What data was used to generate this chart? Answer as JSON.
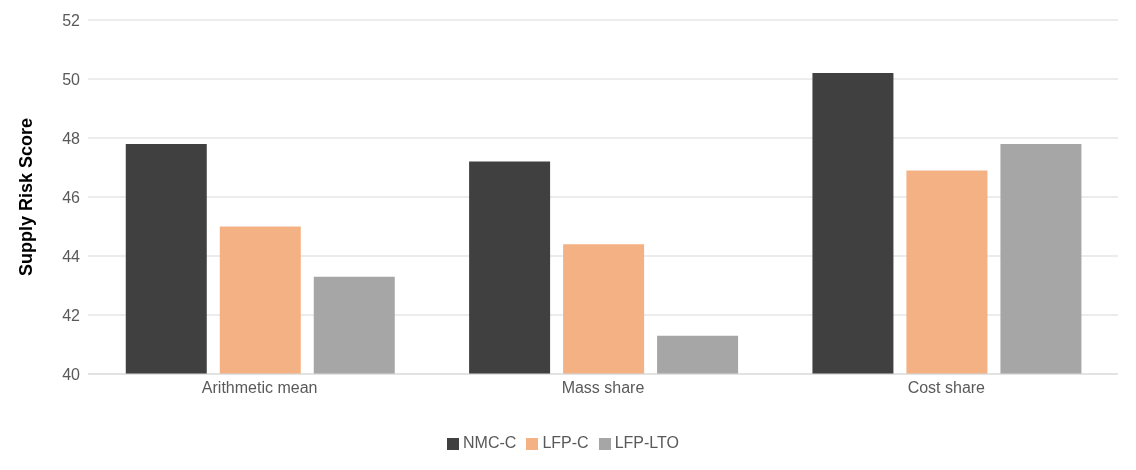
{
  "chart_data": {
    "type": "bar",
    "ylabel": "Supply Risk Score",
    "categories": [
      "Arithmetic mean",
      "Mass share",
      "Cost share"
    ],
    "series": [
      {
        "name": "NMC-C",
        "color": "#404040",
        "values": [
          47.8,
          47.2,
          50.2
        ]
      },
      {
        "name": "LFP-C",
        "color": "#f4b183",
        "values": [
          45.0,
          44.4,
          46.9
        ]
      },
      {
        "name": "LFP-LTO",
        "color": "#a6a6a6",
        "values": [
          43.3,
          41.3,
          47.8
        ]
      }
    ],
    "ylim": [
      40,
      52
    ],
    "yticks": [
      40,
      42,
      44,
      46,
      48,
      50,
      52
    ],
    "grid": "y",
    "legend": "bottom"
  }
}
